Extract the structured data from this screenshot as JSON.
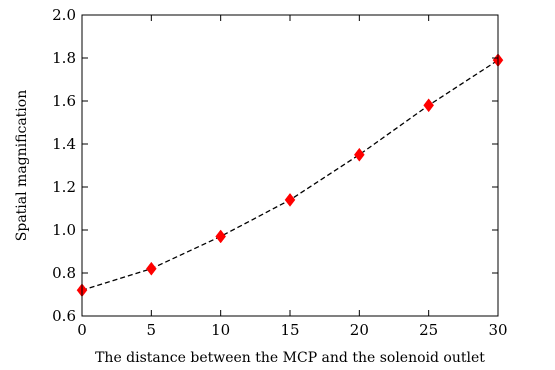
{
  "chart_data": {
    "type": "scatter",
    "title": "",
    "xlabel": "The distance between the MCP and the solenoid outlet",
    "ylabel": "Spatial magnification",
    "xlim": [
      0,
      30
    ],
    "ylim": [
      0.6,
      2.0
    ],
    "x_ticks": [
      0,
      5,
      10,
      15,
      20,
      25,
      30
    ],
    "y_ticks": [
      0.6,
      0.8,
      1.0,
      1.2,
      1.4,
      1.6,
      1.8,
      2.0
    ],
    "x_tick_labels": [
      "0",
      "5",
      "10",
      "15",
      "20",
      "25",
      "30"
    ],
    "y_tick_labels": [
      "0.6",
      "0.8",
      "1.0",
      "1.2",
      "1.4",
      "1.6",
      "1.8",
      "2.0"
    ],
    "grid": false,
    "legend": "none",
    "series": [
      {
        "marker": "diamond",
        "color": "#ff0000",
        "x": [
          0,
          5,
          10,
          15,
          20,
          25,
          30
        ],
        "y": [
          0.72,
          0.82,
          0.97,
          1.14,
          1.35,
          1.58,
          1.79
        ]
      },
      {
        "style": "dashed-line",
        "color": "#000000",
        "x": [
          0,
          5,
          10,
          15,
          20,
          25,
          30
        ],
        "y": [
          0.72,
          0.82,
          0.97,
          1.14,
          1.35,
          1.58,
          1.79
        ]
      }
    ]
  }
}
